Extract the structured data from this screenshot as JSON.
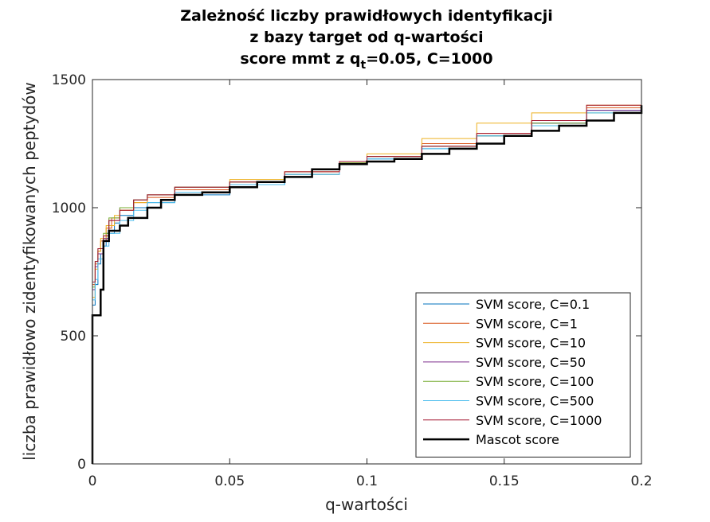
{
  "chart_data": {
    "type": "line",
    "title_lines": [
      "Zależność liczby prawidłowych identyfikacji",
      "z bazy target od q-wartości"
    ],
    "subtitle": {
      "prefix": "score mmt z q",
      "subscript": "t",
      "suffix": "=0.05, C=1000"
    },
    "xlabel": "q-wartości",
    "ylabel": "liczba prawidłowo zidentyfikowanych peptydów",
    "xlim": [
      0,
      0.2
    ],
    "ylim": [
      0,
      1500
    ],
    "x_ticks": [
      "0",
      "0.05",
      "0.1",
      "0.15",
      "0.2"
    ],
    "y_ticks": [
      "0",
      "500",
      "1000",
      "1500"
    ],
    "x_tick_values": [
      0,
      0.05,
      0.1,
      0.15,
      0.2
    ],
    "y_tick_values": [
      0,
      500,
      1000,
      1500
    ],
    "grid": false,
    "legend_position": "bottom-right",
    "series": [
      {
        "name": "SVM score, C=0.1",
        "color": "#0072BD",
        "points": [
          [
            0,
            0
          ],
          [
            0,
            620
          ],
          [
            0.001,
            700
          ],
          [
            0.002,
            780
          ],
          [
            0.003,
            820
          ],
          [
            0.004,
            850
          ],
          [
            0.005,
            900
          ],
          [
            0.008,
            940
          ],
          [
            0.01,
            970
          ],
          [
            0.015,
            1000
          ],
          [
            0.02,
            1020
          ],
          [
            0.03,
            1050
          ],
          [
            0.05,
            1090
          ],
          [
            0.07,
            1130
          ],
          [
            0.09,
            1170
          ],
          [
            0.1,
            1190
          ],
          [
            0.12,
            1230
          ],
          [
            0.14,
            1280
          ],
          [
            0.16,
            1330
          ],
          [
            0.18,
            1380
          ],
          [
            0.2,
            1430
          ]
        ]
      },
      {
        "name": "SVM score, C=1",
        "color": "#D95319",
        "points": [
          [
            0,
            0
          ],
          [
            0,
            700
          ],
          [
            0.001,
            780
          ],
          [
            0.002,
            830
          ],
          [
            0.003,
            870
          ],
          [
            0.005,
            920
          ],
          [
            0.007,
            960
          ],
          [
            0.01,
            990
          ],
          [
            0.015,
            1020
          ],
          [
            0.02,
            1040
          ],
          [
            0.03,
            1070
          ],
          [
            0.05,
            1100
          ],
          [
            0.07,
            1140
          ],
          [
            0.09,
            1180
          ],
          [
            0.1,
            1200
          ],
          [
            0.12,
            1250
          ],
          [
            0.14,
            1290
          ],
          [
            0.16,
            1340
          ],
          [
            0.18,
            1390
          ],
          [
            0.2,
            1460
          ]
        ]
      },
      {
        "name": "SVM score, C=10",
        "color": "#EDB120",
        "points": [
          [
            0,
            0
          ],
          [
            0,
            650
          ],
          [
            0.001,
            760
          ],
          [
            0.002,
            830
          ],
          [
            0.003,
            880
          ],
          [
            0.005,
            930
          ],
          [
            0.008,
            970
          ],
          [
            0.01,
            990
          ],
          [
            0.015,
            1020
          ],
          [
            0.02,
            1050
          ],
          [
            0.03,
            1080
          ],
          [
            0.05,
            1110
          ],
          [
            0.07,
            1140
          ],
          [
            0.09,
            1180
          ],
          [
            0.1,
            1210
          ],
          [
            0.12,
            1270
          ],
          [
            0.14,
            1330
          ],
          [
            0.16,
            1370
          ],
          [
            0.18,
            1400
          ],
          [
            0.2,
            1440
          ]
        ]
      },
      {
        "name": "SVM score, C=50",
        "color": "#7E2F8E",
        "points": [
          [
            0,
            0
          ],
          [
            0,
            680
          ],
          [
            0.001,
            770
          ],
          [
            0.002,
            820
          ],
          [
            0.004,
            880
          ],
          [
            0.006,
            950
          ],
          [
            0.01,
            1000
          ],
          [
            0.015,
            1030
          ],
          [
            0.02,
            1050
          ],
          [
            0.03,
            1080
          ],
          [
            0.05,
            1100
          ],
          [
            0.07,
            1130
          ],
          [
            0.09,
            1180
          ],
          [
            0.1,
            1200
          ],
          [
            0.12,
            1240
          ],
          [
            0.14,
            1280
          ],
          [
            0.16,
            1330
          ],
          [
            0.18,
            1380
          ],
          [
            0.2,
            1450
          ]
        ]
      },
      {
        "name": "SVM score, C=100",
        "color": "#77AC30",
        "points": [
          [
            0,
            0
          ],
          [
            0,
            690
          ],
          [
            0.001,
            790
          ],
          [
            0.002,
            840
          ],
          [
            0.004,
            900
          ],
          [
            0.006,
            960
          ],
          [
            0.01,
            1000
          ],
          [
            0.015,
            1030
          ],
          [
            0.02,
            1050
          ],
          [
            0.03,
            1080
          ],
          [
            0.05,
            1100
          ],
          [
            0.07,
            1130
          ],
          [
            0.09,
            1175
          ],
          [
            0.1,
            1200
          ],
          [
            0.12,
            1240
          ],
          [
            0.14,
            1280
          ],
          [
            0.16,
            1330
          ],
          [
            0.18,
            1370
          ],
          [
            0.2,
            1440
          ]
        ]
      },
      {
        "name": "SVM score, C=500",
        "color": "#4DBEEE",
        "points": [
          [
            0,
            0
          ],
          [
            0,
            640
          ],
          [
            0.001,
            720
          ],
          [
            0.002,
            800
          ],
          [
            0.004,
            850
          ],
          [
            0.006,
            900
          ],
          [
            0.01,
            950
          ],
          [
            0.015,
            990
          ],
          [
            0.02,
            1020
          ],
          [
            0.03,
            1060
          ],
          [
            0.05,
            1090
          ],
          [
            0.07,
            1130
          ],
          [
            0.09,
            1170
          ],
          [
            0.1,
            1190
          ],
          [
            0.12,
            1230
          ],
          [
            0.14,
            1280
          ],
          [
            0.16,
            1320
          ],
          [
            0.18,
            1370
          ],
          [
            0.2,
            1420
          ]
        ]
      },
      {
        "name": "SVM score, C=1000",
        "color": "#A2142F",
        "points": [
          [
            0,
            0
          ],
          [
            0,
            710
          ],
          [
            0.001,
            790
          ],
          [
            0.002,
            840
          ],
          [
            0.004,
            890
          ],
          [
            0.006,
            950
          ],
          [
            0.01,
            990
          ],
          [
            0.015,
            1030
          ],
          [
            0.02,
            1050
          ],
          [
            0.03,
            1080
          ],
          [
            0.05,
            1100
          ],
          [
            0.07,
            1140
          ],
          [
            0.09,
            1180
          ],
          [
            0.1,
            1200
          ],
          [
            0.12,
            1240
          ],
          [
            0.14,
            1290
          ],
          [
            0.16,
            1340
          ],
          [
            0.18,
            1400
          ],
          [
            0.2,
            1460
          ]
        ]
      },
      {
        "name": "Mascot score",
        "color": "#000000",
        "width": 2.5,
        "points": [
          [
            0,
            0
          ],
          [
            0,
            580
          ],
          [
            0.003,
            580
          ],
          [
            0.003,
            680
          ],
          [
            0.004,
            780
          ],
          [
            0.004,
            870
          ],
          [
            0.006,
            910
          ],
          [
            0.01,
            930
          ],
          [
            0.013,
            930
          ],
          [
            0.013,
            960
          ],
          [
            0.02,
            1000
          ],
          [
            0.025,
            1030
          ],
          [
            0.03,
            1050
          ],
          [
            0.04,
            1060
          ],
          [
            0.05,
            1080
          ],
          [
            0.06,
            1100
          ],
          [
            0.07,
            1120
          ],
          [
            0.08,
            1150
          ],
          [
            0.09,
            1170
          ],
          [
            0.1,
            1180
          ],
          [
            0.11,
            1190
          ],
          [
            0.12,
            1210
          ],
          [
            0.13,
            1230
          ],
          [
            0.14,
            1250
          ],
          [
            0.15,
            1280
          ],
          [
            0.16,
            1300
          ],
          [
            0.17,
            1320
          ],
          [
            0.18,
            1340
          ],
          [
            0.19,
            1370
          ],
          [
            0.2,
            1400
          ]
        ]
      }
    ]
  }
}
